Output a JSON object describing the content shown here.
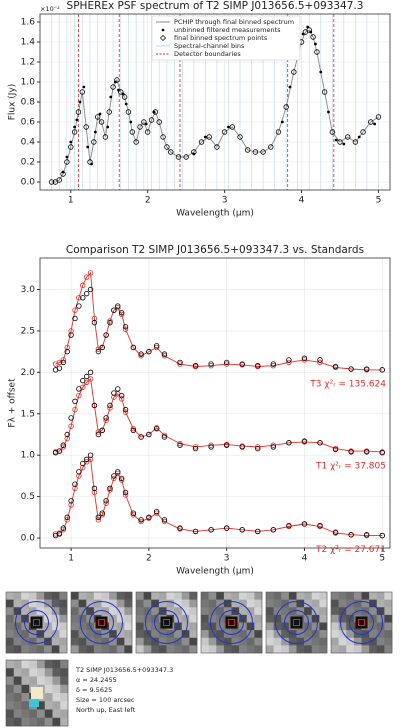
{
  "chart_data": [
    {
      "type": "line",
      "title": "SPHEREx PSF spectrum of T2 SIMP J013656.5+093347.3",
      "x_label": "Wavelength (μm)",
      "y_label": "Flux (Jy)",
      "y_multiplier": "×10⁻²",
      "xlim": [
        0.6,
        5.15
      ],
      "ylim": [
        -0.08,
        1.68
      ],
      "xticks": [
        1,
        2,
        3,
        4,
        5
      ],
      "yticks": [
        {
          "value": 0,
          "label": "0.0"
        },
        {
          "value": 0.2,
          "label": "0.2"
        },
        {
          "value": 0.4,
          "label": "0.4"
        },
        {
          "value": 0.6,
          "label": "0.6"
        },
        {
          "value": 0.8,
          "label": "0.8"
        },
        {
          "value": 1.0,
          "label": "1.0"
        },
        {
          "value": 1.2,
          "label": "1.2"
        },
        {
          "value": 1.4,
          "label": "1.4"
        },
        {
          "value": 1.6,
          "label": "1.6"
        }
      ],
      "grid": true,
      "legend": "upper center",
      "series": [
        {
          "name": "PCHIP through final binned spectrum",
          "color": "#888888",
          "style": "line",
          "x": [
            0.75,
            0.8,
            0.85,
            0.9,
            0.95,
            1.0,
            1.05,
            1.1,
            1.15,
            1.2,
            1.25,
            1.3,
            1.35,
            1.4,
            1.45,
            1.5,
            1.55,
            1.6,
            1.65,
            1.7,
            1.75,
            1.8,
            1.85,
            1.9,
            1.95,
            2.0,
            2.05,
            2.1,
            2.15,
            2.2,
            2.25,
            2.3,
            2.4,
            2.5,
            2.6,
            2.7,
            2.8,
            2.9,
            3.0,
            3.1,
            3.2,
            3.3,
            3.4,
            3.5,
            3.6,
            3.7,
            3.8,
            3.9,
            4.0,
            4.05,
            4.1,
            4.15,
            4.2,
            4.3,
            4.4,
            4.5,
            4.6,
            4.7,
            4.8,
            4.9,
            5.0
          ],
          "values": [
            0.0,
            0.0,
            0.02,
            0.08,
            0.2,
            0.35,
            0.5,
            0.7,
            0.9,
            0.55,
            0.2,
            0.4,
            0.65,
            0.6,
            0.45,
            0.7,
            0.95,
            1.02,
            0.9,
            0.85,
            0.7,
            0.5,
            0.4,
            0.55,
            0.6,
            0.5,
            0.62,
            0.7,
            0.6,
            0.45,
            0.35,
            0.3,
            0.25,
            0.25,
            0.3,
            0.4,
            0.45,
            0.35,
            0.5,
            0.55,
            0.45,
            0.32,
            0.3,
            0.3,
            0.35,
            0.5,
            0.75,
            1.1,
            1.4,
            1.5,
            1.52,
            1.45,
            1.3,
            0.9,
            0.5,
            0.4,
            0.45,
            0.4,
            0.5,
            0.6,
            0.65
          ]
        },
        {
          "name": "unbinned filtered measurements",
          "color": "#000000",
          "style": "dots",
          "x": [
            0.9,
            0.95,
            1.0,
            1.05,
            1.08,
            1.12,
            1.17,
            1.22,
            1.27,
            1.32,
            1.38,
            1.48,
            1.52,
            1.58,
            1.62,
            1.68,
            1.72,
            1.78,
            1.98,
            2.08,
            2.6,
            2.75,
            3.05,
            3.75,
            3.85,
            3.95,
            4.02,
            4.08,
            4.12,
            4.18,
            4.25,
            4.35,
            4.45,
            4.55,
            4.75,
            4.95
          ],
          "values": [
            0.1,
            0.25,
            0.4,
            0.55,
            0.62,
            0.8,
            0.95,
            0.35,
            0.18,
            0.5,
            0.68,
            0.55,
            0.85,
            1.0,
            0.92,
            0.88,
            0.78,
            0.6,
            0.58,
            0.7,
            0.28,
            0.45,
            0.55,
            0.6,
            0.95,
            1.25,
            1.48,
            1.55,
            1.5,
            1.38,
            1.1,
            0.7,
            0.42,
            0.38,
            0.45,
            0.58
          ]
        },
        {
          "name": "final binned spectrum points",
          "color": "#000000",
          "style": "open",
          "x": [
            0.75,
            0.8,
            0.85,
            0.9,
            0.95,
            1.0,
            1.05,
            1.1,
            1.15,
            1.2,
            1.25,
            1.3,
            1.35,
            1.4,
            1.45,
            1.5,
            1.55,
            1.6,
            1.65,
            1.7,
            1.75,
            1.8,
            1.85,
            1.9,
            1.95,
            2.0,
            2.05,
            2.1,
            2.15,
            2.2,
            2.25,
            2.3,
            2.4,
            2.5,
            2.6,
            2.7,
            2.8,
            2.9,
            3.0,
            3.1,
            3.2,
            3.3,
            3.4,
            3.5,
            3.6,
            3.7,
            3.8,
            3.9,
            4.0,
            4.05,
            4.1,
            4.15,
            4.2,
            4.3,
            4.4,
            4.5,
            4.6,
            4.7,
            4.8,
            4.9,
            5.0
          ],
          "values": [
            0.0,
            0.0,
            0.02,
            0.08,
            0.2,
            0.35,
            0.5,
            0.7,
            0.9,
            0.55,
            0.2,
            0.4,
            0.65,
            0.6,
            0.45,
            0.7,
            0.95,
            1.02,
            0.9,
            0.85,
            0.7,
            0.5,
            0.4,
            0.55,
            0.6,
            0.5,
            0.62,
            0.7,
            0.6,
            0.45,
            0.35,
            0.3,
            0.25,
            0.25,
            0.3,
            0.4,
            0.45,
            0.35,
            0.5,
            0.55,
            0.45,
            0.32,
            0.3,
            0.3,
            0.35,
            0.5,
            0.75,
            1.1,
            1.4,
            1.5,
            1.52,
            1.45,
            1.3,
            0.9,
            0.5,
            0.4,
            0.45,
            0.4,
            0.5,
            0.6,
            0.65
          ]
        }
      ],
      "channel_bins": {
        "name": "Spectral-channel bins",
        "color": "#bcd7ea",
        "x": [
          0.75,
          0.85,
          0.95,
          1.05,
          1.15,
          1.25,
          1.35,
          1.45,
          1.55,
          1.65,
          1.75,
          1.85,
          1.95,
          2.05,
          2.15,
          2.25,
          2.35,
          2.45,
          2.6,
          2.75,
          2.9,
          3.05,
          3.2,
          3.35,
          3.5,
          3.65,
          3.8,
          3.95,
          4.1,
          4.25,
          4.4,
          4.55,
          4.7,
          4.85,
          5.0
        ]
      },
      "detector_boundaries": {
        "name": "Detector boundaries",
        "color": "#d62728",
        "x": [
          1.1,
          1.63,
          2.42,
          3.82,
          4.42
        ]
      }
    },
    {
      "type": "line",
      "title": "Comparison T2 SIMP J013656.5+093347.3 vs. Standards",
      "x_label": "Wavelength (μm)",
      "y_label": "Fλ + offset",
      "xlim": [
        0.6,
        5.1
      ],
      "ylim": [
        -0.12,
        3.38
      ],
      "xticks": [
        1,
        2,
        3,
        4,
        5
      ],
      "yticks": [
        {
          "value": 0,
          "label": "0.0"
        },
        {
          "value": 0.5,
          "label": "0.5"
        },
        {
          "value": 1.0,
          "label": "1.0"
        },
        {
          "value": 1.5,
          "label": "1.5"
        },
        {
          "value": 2.0,
          "label": "2.0"
        },
        {
          "value": 2.5,
          "label": "2.5"
        },
        {
          "value": 3.0,
          "label": "3.0"
        }
      ],
      "grid": true,
      "x": [
        0.8,
        0.85,
        0.9,
        0.95,
        1.0,
        1.05,
        1.1,
        1.15,
        1.2,
        1.25,
        1.3,
        1.35,
        1.4,
        1.45,
        1.5,
        1.55,
        1.6,
        1.65,
        1.7,
        1.8,
        1.9,
        2.0,
        2.1,
        2.2,
        2.4,
        2.6,
        2.8,
        3.0,
        3.2,
        3.4,
        3.6,
        3.8,
        4.0,
        4.2,
        4.4,
        4.6,
        4.8,
        5.0
      ],
      "series": [
        {
          "color": "#e0302a",
          "style": "line+open",
          "values": [
            2.1,
            2.12,
            2.15,
            2.3,
            2.5,
            2.75,
            2.9,
            3.05,
            3.15,
            3.2,
            2.65,
            2.28,
            2.3,
            2.45,
            2.62,
            2.75,
            2.78,
            2.7,
            2.52,
            2.3,
            2.2,
            2.25,
            2.3,
            2.2,
            2.1,
            2.07,
            2.08,
            2.1,
            2.09,
            2.07,
            2.08,
            2.12,
            2.15,
            2.12,
            2.06,
            2.04,
            2.03,
            2.03
          ]
        },
        {
          "color": "#000000",
          "style": "open",
          "values": [
            2.03,
            2.05,
            2.12,
            2.25,
            2.45,
            2.65,
            2.8,
            2.9,
            2.95,
            3.0,
            2.6,
            2.25,
            2.3,
            2.45,
            2.6,
            2.75,
            2.8,
            2.72,
            2.55,
            2.3,
            2.22,
            2.25,
            2.32,
            2.22,
            2.12,
            2.08,
            2.1,
            2.12,
            2.1,
            2.08,
            2.1,
            2.15,
            2.17,
            2.15,
            2.07,
            2.04,
            2.04,
            2.03
          ]
        },
        {
          "color": "#e0302a",
          "style": "line+open",
          "values": [
            1.04,
            1.05,
            1.1,
            1.2,
            1.35,
            1.55,
            1.72,
            1.82,
            1.88,
            1.92,
            1.6,
            1.28,
            1.3,
            1.42,
            1.57,
            1.7,
            1.74,
            1.68,
            1.52,
            1.32,
            1.22,
            1.25,
            1.33,
            1.24,
            1.14,
            1.1,
            1.12,
            1.13,
            1.11,
            1.1,
            1.12,
            1.15,
            1.16,
            1.15,
            1.08,
            1.05,
            1.05,
            1.04
          ]
        },
        {
          "color": "#000000",
          "style": "open",
          "values": [
            1.03,
            1.05,
            1.12,
            1.25,
            1.45,
            1.65,
            1.8,
            1.9,
            1.95,
            2.0,
            1.6,
            1.25,
            1.3,
            1.45,
            1.6,
            1.75,
            1.8,
            1.72,
            1.55,
            1.3,
            1.22,
            1.25,
            1.32,
            1.22,
            1.12,
            1.08,
            1.1,
            1.12,
            1.1,
            1.08,
            1.1,
            1.15,
            1.17,
            1.15,
            1.07,
            1.04,
            1.04,
            1.03
          ]
        },
        {
          "color": "#e0302a",
          "style": "line+open",
          "values": [
            0.05,
            0.06,
            0.1,
            0.22,
            0.4,
            0.6,
            0.75,
            0.85,
            0.92,
            0.95,
            0.55,
            0.22,
            0.28,
            0.42,
            0.58,
            0.72,
            0.78,
            0.7,
            0.52,
            0.28,
            0.2,
            0.24,
            0.3,
            0.2,
            0.11,
            0.08,
            0.1,
            0.12,
            0.1,
            0.08,
            0.1,
            0.14,
            0.17,
            0.14,
            0.06,
            0.04,
            0.03,
            0.03
          ]
        },
        {
          "color": "#000000",
          "style": "open",
          "values": [
            0.03,
            0.05,
            0.12,
            0.25,
            0.45,
            0.65,
            0.8,
            0.9,
            0.95,
            1.0,
            0.6,
            0.25,
            0.3,
            0.45,
            0.6,
            0.75,
            0.8,
            0.72,
            0.55,
            0.3,
            0.22,
            0.25,
            0.32,
            0.22,
            0.12,
            0.08,
            0.1,
            0.12,
            0.1,
            0.08,
            0.1,
            0.15,
            0.17,
            0.15,
            0.07,
            0.04,
            0.04,
            0.03
          ]
        }
      ],
      "annotations": [
        "T3  χ²ᵣ = 135.624",
        "T1  χ²ᵣ = 37.805",
        "T2  χ²ᵣ = 27.671"
      ],
      "annotation_color": "#e0302a"
    }
  ],
  "cutout_caption": [
    "T2 SIMP J013656.5+093347.3",
    "α = 24.2455",
    "δ = 9.5625",
    "Size = 100 arcsec",
    "North up, East left"
  ]
}
